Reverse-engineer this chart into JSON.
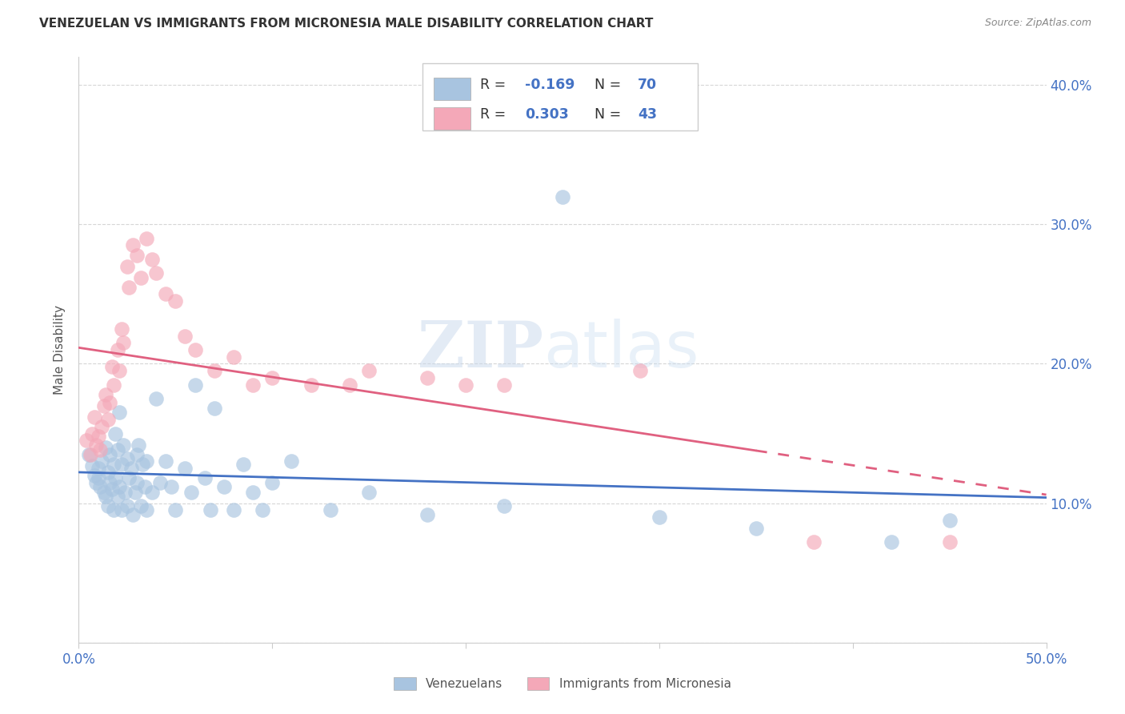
{
  "title": "VENEZUELAN VS IMMIGRANTS FROM MICRONESIA MALE DISABILITY CORRELATION CHART",
  "source": "Source: ZipAtlas.com",
  "ylabel": "Male Disability",
  "xlabel": "",
  "xlim": [
    0.0,
    0.5
  ],
  "ylim": [
    0.0,
    0.42
  ],
  "x_ticks": [
    0.0,
    0.1,
    0.2,
    0.3,
    0.4,
    0.5
  ],
  "x_tick_labels_show": [
    "0.0%",
    "50.0%"
  ],
  "y_ticks": [
    0.0,
    0.1,
    0.2,
    0.3,
    0.4
  ],
  "y_tick_labels_right": [
    "",
    "10.0%",
    "20.0%",
    "30.0%",
    "40.0%"
  ],
  "blue_R": "-0.169",
  "blue_N": "70",
  "pink_R": "0.303",
  "pink_N": "43",
  "blue_color": "#a8c4e0",
  "pink_color": "#f4a8b8",
  "blue_line_color": "#4472c4",
  "pink_line_color": "#e06080",
  "watermark_zip": "ZIP",
  "watermark_atlas": "atlas",
  "venezuelans_x": [
    0.005,
    0.007,
    0.008,
    0.009,
    0.01,
    0.01,
    0.011,
    0.012,
    0.013,
    0.014,
    0.014,
    0.015,
    0.015,
    0.016,
    0.016,
    0.017,
    0.018,
    0.018,
    0.019,
    0.019,
    0.02,
    0.02,
    0.021,
    0.021,
    0.022,
    0.022,
    0.023,
    0.024,
    0.025,
    0.025,
    0.026,
    0.027,
    0.028,
    0.029,
    0.03,
    0.03,
    0.031,
    0.032,
    0.033,
    0.034,
    0.035,
    0.035,
    0.038,
    0.04,
    0.042,
    0.045,
    0.048,
    0.05,
    0.055,
    0.058,
    0.06,
    0.065,
    0.068,
    0.07,
    0.075,
    0.08,
    0.085,
    0.09,
    0.095,
    0.1,
    0.11,
    0.13,
    0.15,
    0.18,
    0.22,
    0.25,
    0.3,
    0.35,
    0.42,
    0.45
  ],
  "venezuelans_y": [
    0.135,
    0.127,
    0.12,
    0.115,
    0.125,
    0.118,
    0.112,
    0.13,
    0.108,
    0.14,
    0.105,
    0.122,
    0.098,
    0.115,
    0.135,
    0.11,
    0.128,
    0.095,
    0.118,
    0.15,
    0.138,
    0.105,
    0.165,
    0.112,
    0.128,
    0.095,
    0.142,
    0.108,
    0.132,
    0.098,
    0.118,
    0.125,
    0.092,
    0.108,
    0.135,
    0.115,
    0.142,
    0.098,
    0.128,
    0.112,
    0.095,
    0.13,
    0.108,
    0.175,
    0.115,
    0.13,
    0.112,
    0.095,
    0.125,
    0.108,
    0.185,
    0.118,
    0.095,
    0.168,
    0.112,
    0.095,
    0.128,
    0.108,
    0.095,
    0.115,
    0.13,
    0.095,
    0.108,
    0.092,
    0.098,
    0.32,
    0.09,
    0.082,
    0.072,
    0.088
  ],
  "micronesia_x": [
    0.004,
    0.006,
    0.007,
    0.008,
    0.009,
    0.01,
    0.011,
    0.012,
    0.013,
    0.014,
    0.015,
    0.016,
    0.017,
    0.018,
    0.02,
    0.021,
    0.022,
    0.023,
    0.025,
    0.026,
    0.028,
    0.03,
    0.032,
    0.035,
    0.038,
    0.04,
    0.045,
    0.05,
    0.055,
    0.06,
    0.07,
    0.08,
    0.09,
    0.1,
    0.12,
    0.14,
    0.15,
    0.18,
    0.2,
    0.22,
    0.29,
    0.38,
    0.45
  ],
  "micronesia_y": [
    0.145,
    0.135,
    0.15,
    0.162,
    0.142,
    0.148,
    0.138,
    0.155,
    0.17,
    0.178,
    0.16,
    0.172,
    0.198,
    0.185,
    0.21,
    0.195,
    0.225,
    0.215,
    0.27,
    0.255,
    0.285,
    0.278,
    0.262,
    0.29,
    0.275,
    0.265,
    0.25,
    0.245,
    0.22,
    0.21,
    0.195,
    0.205,
    0.185,
    0.19,
    0.185,
    0.185,
    0.195,
    0.19,
    0.185,
    0.185,
    0.195,
    0.072,
    0.072
  ]
}
